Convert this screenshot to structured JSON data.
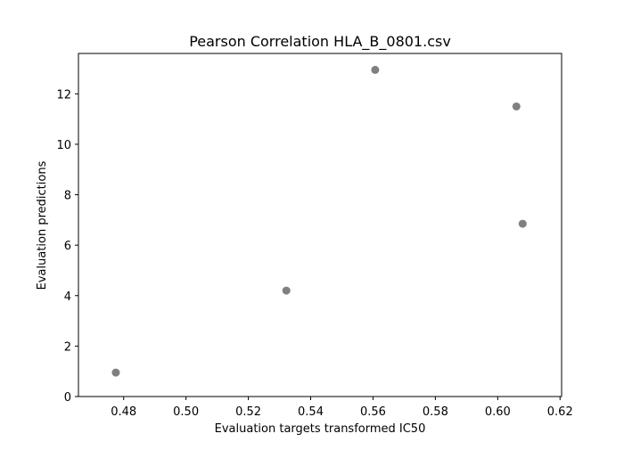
{
  "chart_data": {
    "type": "scatter",
    "title": "Pearson Correlation HLA_B_0801.csv",
    "xlabel": "Evaluation targets transformed IC50",
    "ylabel": "Evaluation predictions",
    "xlim": [
      0.4655,
      0.6205
    ],
    "ylim": [
      0,
      13.6
    ],
    "xticks": [
      0.48,
      0.5,
      0.52,
      0.54,
      0.56,
      0.58,
      0.6,
      0.62
    ],
    "xtick_labels": [
      "0.48",
      "0.50",
      "0.52",
      "0.54",
      "0.56",
      "0.58",
      "0.60",
      "0.62"
    ],
    "yticks": [
      0,
      2,
      4,
      6,
      8,
      10,
      12
    ],
    "ytick_labels": [
      "0",
      "2",
      "4",
      "6",
      "8",
      "10",
      "12"
    ],
    "grid": false,
    "marker_color": "#808080",
    "points": [
      {
        "x": 0.4775,
        "y": 0.95
      },
      {
        "x": 0.5322,
        "y": 4.2
      },
      {
        "x": 0.5607,
        "y": 12.95
      },
      {
        "x": 0.606,
        "y": 11.5
      },
      {
        "x": 0.608,
        "y": 6.85
      }
    ]
  }
}
